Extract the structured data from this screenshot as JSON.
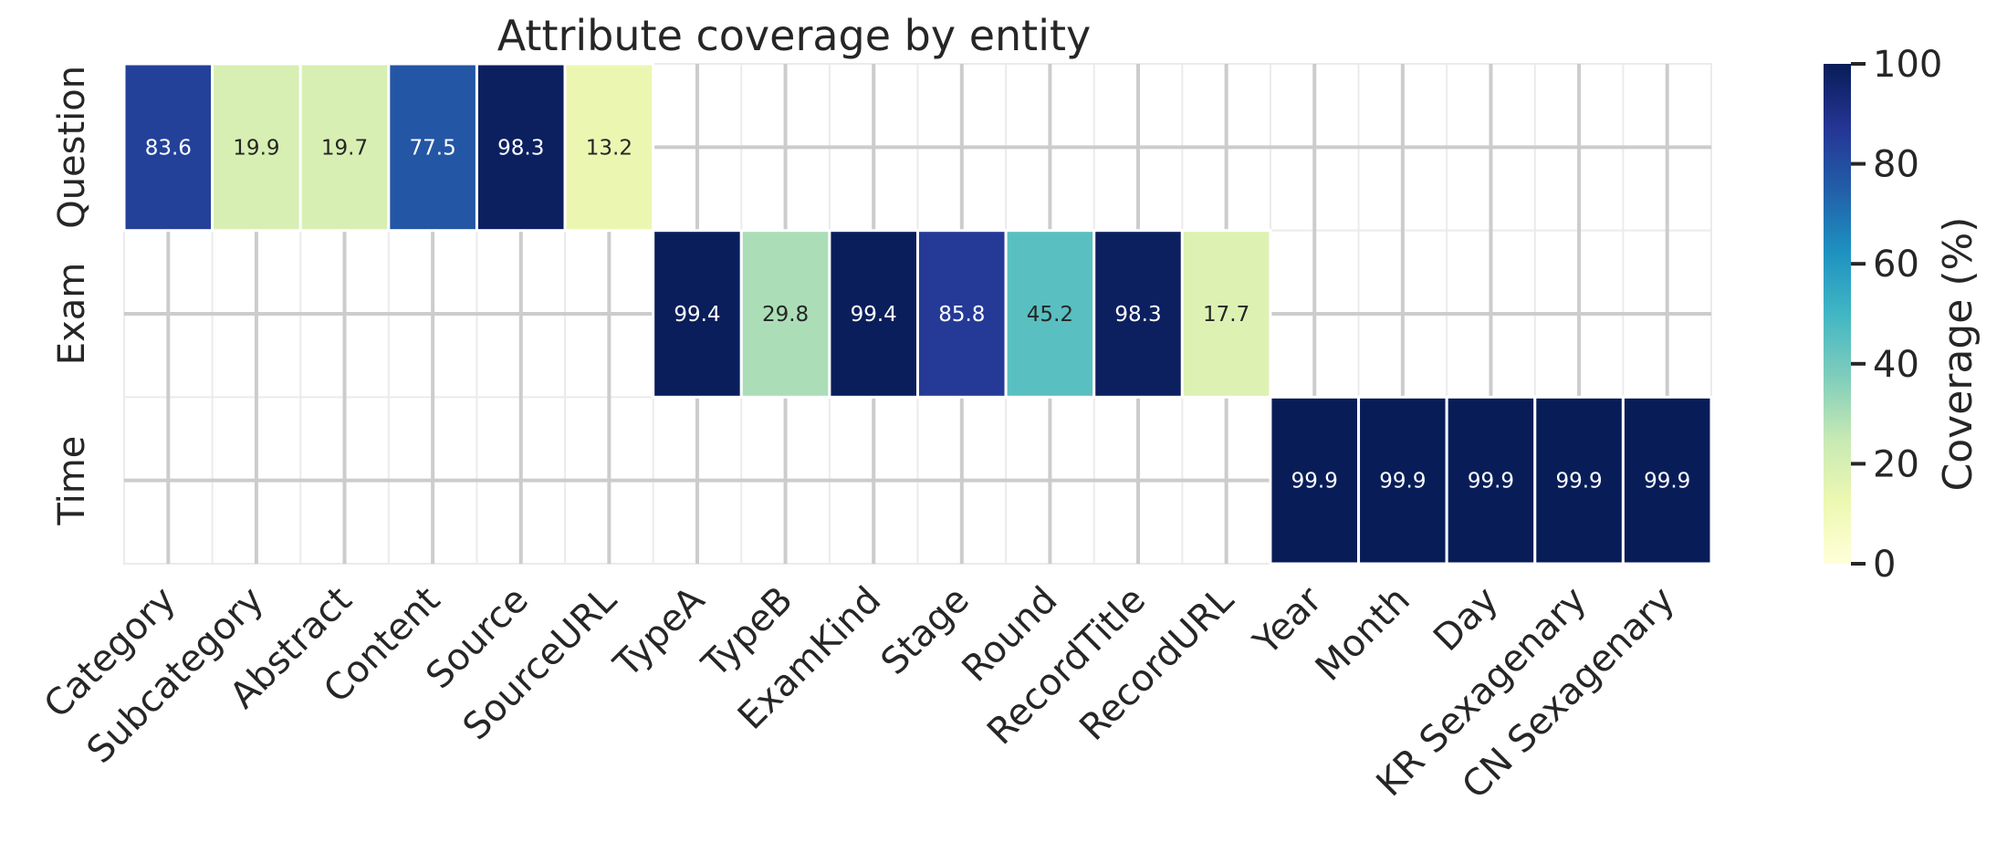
{
  "chart_data": {
    "type": "heatmap",
    "title": "Attribute coverage by entity",
    "xlabel": "",
    "ylabel": "",
    "columns": [
      "Category",
      "Subcategory",
      "Abstract",
      "Content",
      "Source",
      "SourceURL",
      "TypeA",
      "TypeB",
      "ExamKind",
      "Stage",
      "Round",
      "RecordTitle",
      "RecordURL",
      "Year",
      "Month",
      "Day",
      "KR Sexagenary",
      "CN Sexagenary"
    ],
    "rows": [
      "Question",
      "Exam",
      "Time"
    ],
    "values": [
      [
        83.6,
        19.9,
        19.7,
        77.5,
        98.3,
        13.2,
        null,
        null,
        null,
        null,
        null,
        null,
        null,
        null,
        null,
        null,
        null,
        null
      ],
      [
        null,
        null,
        null,
        null,
        null,
        null,
        99.4,
        29.8,
        99.4,
        85.8,
        45.2,
        98.3,
        17.7,
        null,
        null,
        null,
        null,
        null
      ],
      [
        null,
        null,
        null,
        null,
        null,
        null,
        null,
        null,
        null,
        null,
        null,
        null,
        null,
        99.9,
        99.9,
        99.9,
        99.9,
        99.9
      ]
    ],
    "colorbar": {
      "label": "Coverage (%)",
      "range": [
        0,
        100
      ],
      "ticks": [
        0,
        20,
        40,
        60,
        80,
        100
      ],
      "colormap": "YlGnBu"
    },
    "grid": true
  }
}
